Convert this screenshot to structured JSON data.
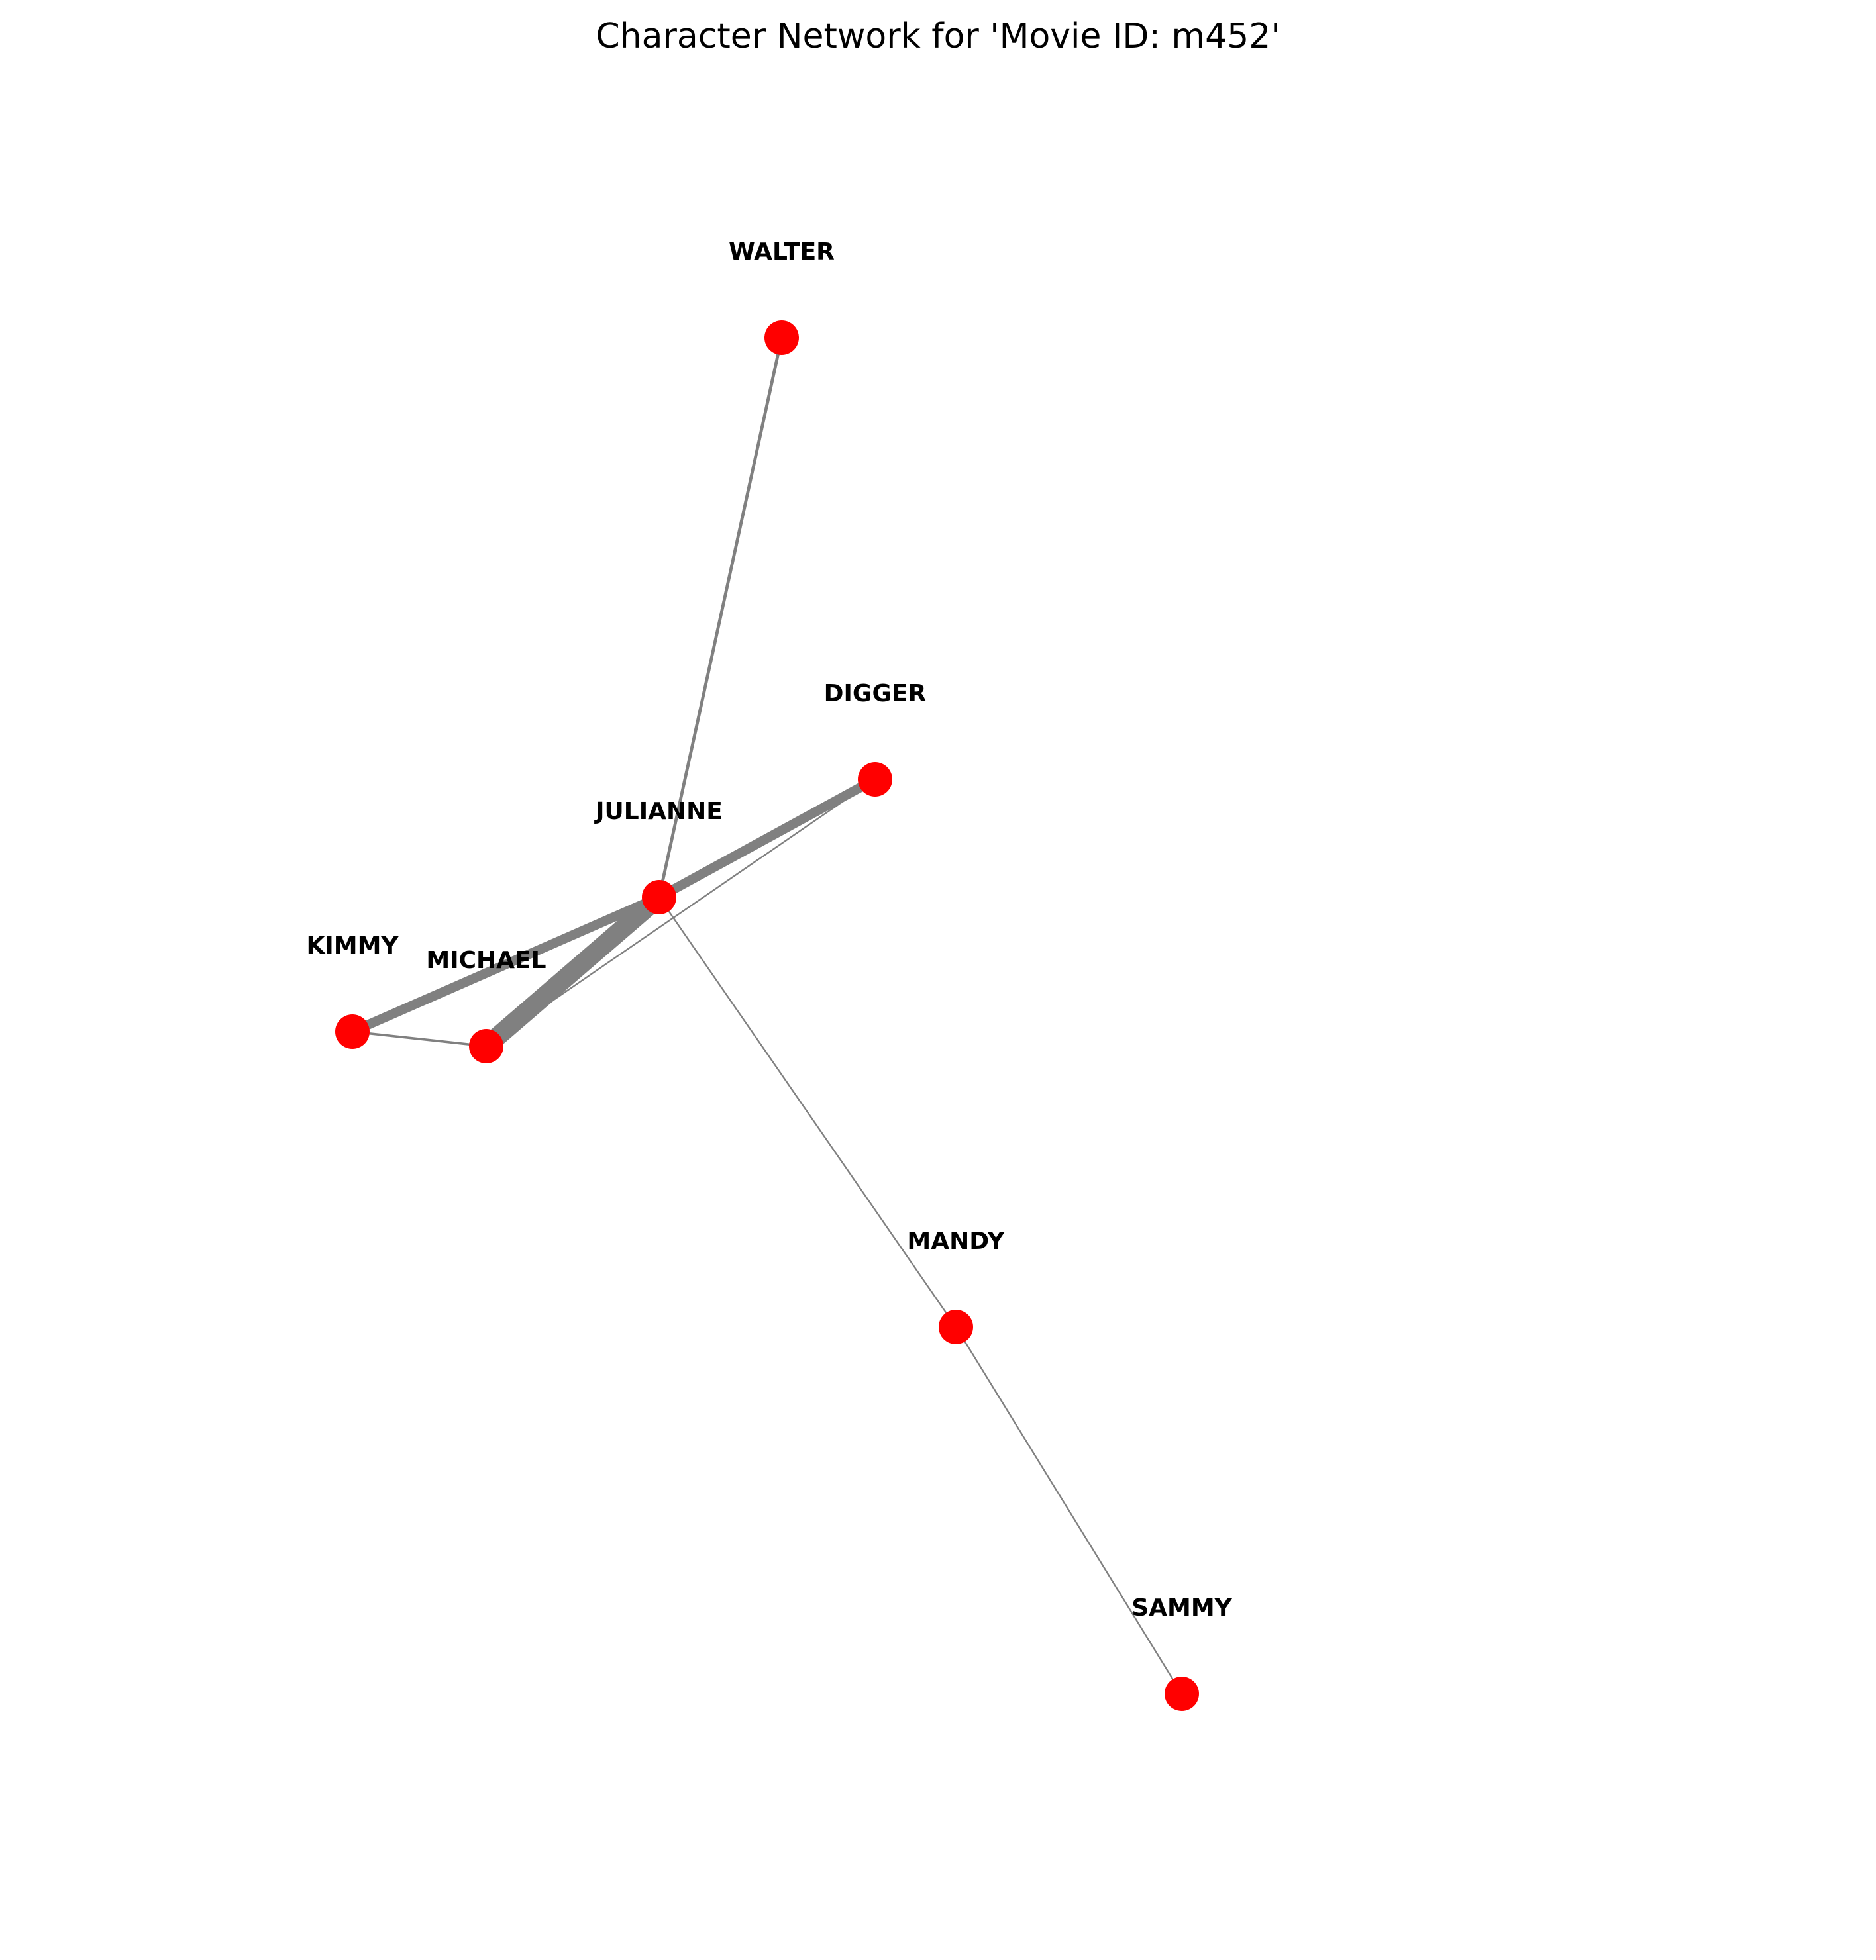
{
  "title": "Character Network for 'Movie ID: m452'",
  "colors": {
    "node": "#ff0000",
    "edge": "#808080",
    "label": "#000000",
    "background": "#ffffff"
  },
  "nodes": [
    {
      "id": "walter",
      "label": "WALTER"
    },
    {
      "id": "digger",
      "label": "DIGGER"
    },
    {
      "id": "julianne",
      "label": "JULIANNE"
    },
    {
      "id": "kimmy",
      "label": "KIMMY"
    },
    {
      "id": "michael",
      "label": "MICHAEL"
    },
    {
      "id": "mandy",
      "label": "MANDY"
    },
    {
      "id": "sammy",
      "label": "SAMMY"
    }
  ],
  "edges": [
    {
      "source": "walter",
      "target": "julianne",
      "weight": 2
    },
    {
      "source": "julianne",
      "target": "digger",
      "weight": 6
    },
    {
      "source": "julianne",
      "target": "kimmy",
      "weight": 6
    },
    {
      "source": "julianne",
      "target": "michael",
      "weight": 12
    },
    {
      "source": "digger",
      "target": "michael",
      "weight": 1
    },
    {
      "source": "kimmy",
      "target": "michael",
      "weight": 1.5
    },
    {
      "source": "julianne",
      "target": "mandy",
      "weight": 1
    },
    {
      "source": "mandy",
      "target": "sammy",
      "weight": 1
    }
  ]
}
